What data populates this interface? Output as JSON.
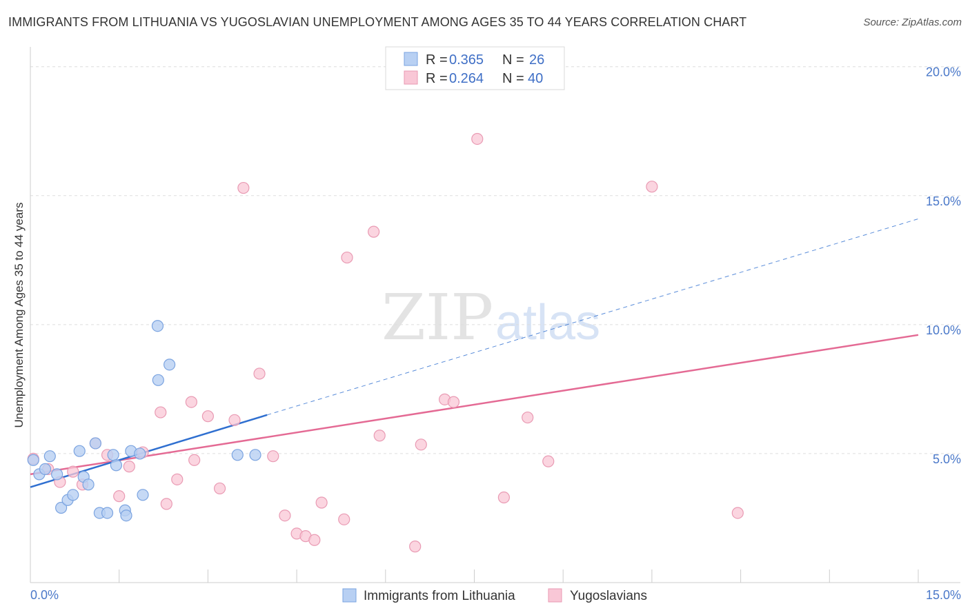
{
  "header": {
    "title": "IMMIGRANTS FROM LITHUANIA VS YUGOSLAVIAN UNEMPLOYMENT AMONG AGES 35 TO 44 YEARS CORRELATION CHART",
    "source": "Source: ZipAtlas.com"
  },
  "watermark": {
    "zip": "ZIP",
    "atlas": "atlas"
  },
  "colors": {
    "blue_fill": "#b8d0f3",
    "blue_stroke": "#7aa3e0",
    "blue_line": "#2f6fd0",
    "pink_fill": "#f9c7d6",
    "pink_stroke": "#e99ab3",
    "pink_line": "#e46a94",
    "tick_text": "#4a78c9",
    "grid": "#dddddd"
  },
  "legend": {
    "r_label": "R =",
    "n_label": "N =",
    "blue": {
      "r": "0.365",
      "n": "26"
    },
    "pink": {
      "r": "0.264",
      "n": "40"
    }
  },
  "bottom_legend": {
    "series1": "Immigrants from Lithuania",
    "series2": "Yugoslavians"
  },
  "chart_data": {
    "type": "scatter",
    "title": "IMMIGRANTS FROM LITHUANIA VS YUGOSLAVIAN UNEMPLOYMENT AMONG AGES 35 TO 44 YEARS CORRELATION CHART",
    "xlabel": "",
    "ylabel": "Unemployment Among Ages 35 to 44 years",
    "xlim": [
      0,
      15
    ],
    "ylim": [
      0,
      20.5
    ],
    "x_tick_labels": [
      "0.0%",
      "15.0%"
    ],
    "y_ticks": [
      5,
      10,
      15,
      20
    ],
    "y_tick_labels": [
      "5.0%",
      "10.0%",
      "15.0%",
      "20.0%"
    ],
    "series": [
      {
        "name": "Immigrants from Lithuania",
        "color": "blue",
        "points": [
          [
            0.05,
            4.75
          ],
          [
            0.15,
            4.2
          ],
          [
            0.25,
            4.4
          ],
          [
            0.33,
            4.9
          ],
          [
            0.45,
            4.2
          ],
          [
            0.52,
            2.9
          ],
          [
            0.63,
            3.2
          ],
          [
            0.72,
            3.4
          ],
          [
            0.83,
            5.1
          ],
          [
            0.9,
            4.1
          ],
          [
            0.98,
            3.8
          ],
          [
            1.1,
            5.4
          ],
          [
            1.17,
            2.7
          ],
          [
            1.3,
            2.7
          ],
          [
            1.4,
            4.95
          ],
          [
            1.45,
            4.55
          ],
          [
            1.6,
            2.8
          ],
          [
            1.62,
            2.6
          ],
          [
            1.7,
            5.1
          ],
          [
            1.85,
            5.0
          ],
          [
            1.9,
            3.4
          ],
          [
            2.15,
            9.95
          ],
          [
            2.16,
            7.85
          ],
          [
            2.35,
            8.45
          ],
          [
            3.5,
            4.95
          ],
          [
            3.8,
            4.95
          ]
        ],
        "trend": {
          "x": [
            0.0,
            4.0
          ],
          "y": [
            3.7,
            6.5
          ],
          "extended_x": [
            4.0,
            15.0
          ],
          "extended_y": [
            6.5,
            14.1
          ]
        }
      },
      {
        "name": "Yugoslavians",
        "color": "pink",
        "points": [
          [
            0.05,
            4.8
          ],
          [
            0.3,
            4.4
          ],
          [
            0.5,
            3.9
          ],
          [
            0.72,
            4.3
          ],
          [
            0.88,
            3.8
          ],
          [
            1.1,
            5.4
          ],
          [
            1.3,
            4.95
          ],
          [
            1.5,
            3.35
          ],
          [
            1.67,
            4.5
          ],
          [
            1.9,
            5.05
          ],
          [
            2.2,
            6.6
          ],
          [
            2.3,
            3.05
          ],
          [
            2.48,
            4.0
          ],
          [
            2.72,
            7.0
          ],
          [
            2.77,
            4.75
          ],
          [
            3.0,
            6.45
          ],
          [
            3.2,
            3.65
          ],
          [
            3.45,
            6.3
          ],
          [
            3.6,
            15.3
          ],
          [
            3.87,
            8.1
          ],
          [
            4.1,
            4.9
          ],
          [
            4.3,
            2.6
          ],
          [
            4.5,
            1.9
          ],
          [
            4.65,
            1.8
          ],
          [
            4.8,
            1.65
          ],
          [
            4.92,
            3.1
          ],
          [
            5.3,
            2.45
          ],
          [
            5.35,
            12.6
          ],
          [
            5.8,
            13.6
          ],
          [
            5.9,
            5.7
          ],
          [
            6.5,
            1.4
          ],
          [
            6.6,
            5.35
          ],
          [
            7.0,
            7.1
          ],
          [
            7.15,
            7.0
          ],
          [
            7.55,
            17.2
          ],
          [
            8.0,
            3.3
          ],
          [
            8.4,
            6.4
          ],
          [
            8.75,
            4.7
          ],
          [
            10.5,
            15.35
          ],
          [
            11.95,
            2.7
          ]
        ],
        "trend": {
          "x": [
            0.0,
            15.0
          ],
          "y": [
            4.2,
            9.6
          ]
        }
      }
    ]
  }
}
